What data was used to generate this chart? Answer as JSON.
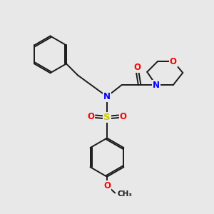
{
  "bg_color": "#e8e8e8",
  "bond_color": "#1a1a1a",
  "bond_width": 1.4,
  "atom_colors": {
    "N": "#0000ff",
    "O": "#ff0000",
    "S": "#cccc00",
    "C": "#1a1a1a"
  },
  "font_size_atom": 8.5
}
